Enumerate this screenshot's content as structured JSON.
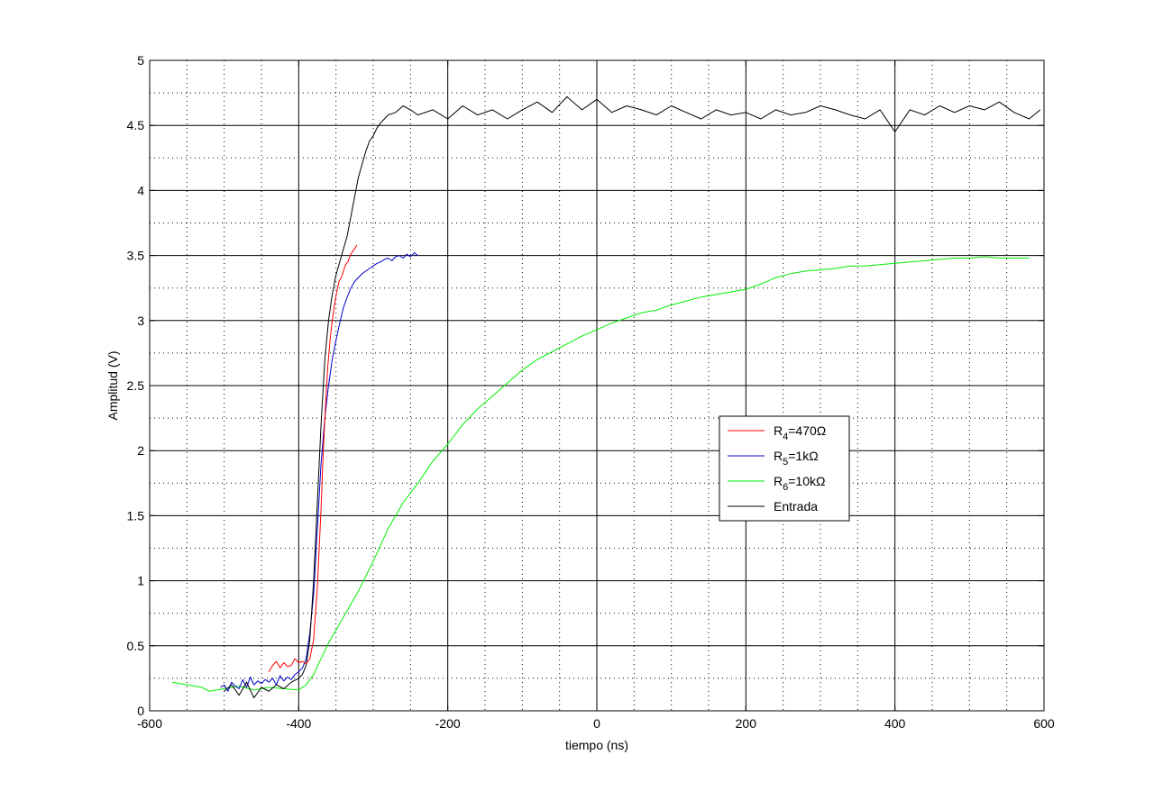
{
  "chart_data": {
    "type": "line",
    "xlabel": "tiempo (ns)",
    "ylabel": "Amplitud (V)",
    "xlim": [
      -600,
      600
    ],
    "ylim": [
      0,
      5
    ],
    "xticks": [
      -600,
      -400,
      -200,
      0,
      200,
      400,
      600
    ],
    "yticks": [
      0,
      0.5,
      1,
      1.5,
      2,
      2.5,
      3,
      3.5,
      4,
      4.5,
      5
    ],
    "grid": true,
    "minor_grid": "dotted",
    "legend_position": "center-right",
    "series": [
      {
        "name": "R4=470Ω",
        "legend_base": "R",
        "legend_sub": "4",
        "legend_rest": "=470Ω",
        "color": "#ff0000",
        "x": [
          -440,
          -435,
          -430,
          -425,
          -420,
          -415,
          -410,
          -405,
          -400,
          -395,
          -390,
          -385,
          -380,
          -375,
          -370,
          -367,
          -364,
          -361,
          -358,
          -355,
          -352,
          -349,
          -346,
          -343,
          -340,
          -337,
          -334,
          -331,
          -328,
          -325,
          -322
        ],
        "y": [
          0.3,
          0.35,
          0.38,
          0.33,
          0.37,
          0.34,
          0.35,
          0.4,
          0.37,
          0.38,
          0.36,
          0.4,
          0.55,
          0.95,
          1.55,
          2.0,
          2.35,
          2.65,
          2.85,
          3.0,
          3.12,
          3.22,
          3.3,
          3.33,
          3.38,
          3.43,
          3.45,
          3.5,
          3.53,
          3.55,
          3.58
        ]
      },
      {
        "name": "R5=1kΩ",
        "legend_base": "R",
        "legend_sub": "5",
        "legend_rest": "=1kΩ",
        "color": "#0000cc",
        "x": [
          -505,
          -500,
          -495,
          -490,
          -485,
          -480,
          -475,
          -470,
          -465,
          -460,
          -455,
          -450,
          -445,
          -440,
          -435,
          -430,
          -425,
          -420,
          -415,
          -410,
          -405,
          -400,
          -395,
          -390,
          -385,
          -380,
          -375,
          -370,
          -365,
          -360,
          -355,
          -350,
          -345,
          -340,
          -335,
          -330,
          -325,
          -320,
          -315,
          -310,
          -305,
          -300,
          -295,
          -290,
          -285,
          -280,
          -275,
          -270,
          -265,
          -260,
          -255,
          -250,
          -245,
          -240
        ],
        "y": [
          0.18,
          0.2,
          0.15,
          0.22,
          0.19,
          0.17,
          0.24,
          0.18,
          0.26,
          0.2,
          0.23,
          0.21,
          0.24,
          0.22,
          0.25,
          0.2,
          0.27,
          0.23,
          0.26,
          0.24,
          0.28,
          0.3,
          0.33,
          0.4,
          0.6,
          0.9,
          1.4,
          1.9,
          2.25,
          2.5,
          2.7,
          2.85,
          2.98,
          3.1,
          3.18,
          3.25,
          3.3,
          3.33,
          3.36,
          3.38,
          3.4,
          3.42,
          3.44,
          3.45,
          3.47,
          3.48,
          3.46,
          3.49,
          3.5,
          3.48,
          3.51,
          3.49,
          3.52,
          3.5
        ]
      },
      {
        "name": "R6=10kΩ",
        "legend_base": "R",
        "legend_sub": "6",
        "legend_rest": "=10kΩ",
        "color": "#00ee00",
        "x": [
          -570,
          -550,
          -530,
          -520,
          -500,
          -480,
          -460,
          -440,
          -420,
          -400,
          -390,
          -380,
          -370,
          -360,
          -350,
          -340,
          -330,
          -320,
          -300,
          -280,
          -260,
          -240,
          -220,
          -200,
          -180,
          -160,
          -140,
          -120,
          -100,
          -80,
          -60,
          -40,
          -20,
          0,
          20,
          40,
          60,
          80,
          100,
          120,
          140,
          160,
          180,
          200,
          220,
          240,
          260,
          280,
          300,
          320,
          340,
          360,
          380,
          400,
          420,
          440,
          460,
          480,
          500,
          520,
          540,
          560,
          580
        ],
        "y": [
          0.22,
          0.2,
          0.18,
          0.15,
          0.17,
          0.19,
          0.16,
          0.18,
          0.17,
          0.16,
          0.2,
          0.28,
          0.4,
          0.52,
          0.62,
          0.72,
          0.82,
          0.92,
          1.15,
          1.4,
          1.6,
          1.75,
          1.92,
          2.05,
          2.2,
          2.32,
          2.42,
          2.52,
          2.62,
          2.7,
          2.76,
          2.82,
          2.88,
          2.93,
          2.98,
          3.02,
          3.06,
          3.08,
          3.12,
          3.15,
          3.18,
          3.2,
          3.22,
          3.24,
          3.28,
          3.33,
          3.36,
          3.38,
          3.39,
          3.4,
          3.42,
          3.42,
          3.43,
          3.44,
          3.45,
          3.46,
          3.47,
          3.48,
          3.48,
          3.49,
          3.48,
          3.48,
          3.48
        ]
      },
      {
        "name": "Entrada",
        "legend_base": "Entrada",
        "legend_sub": "",
        "legend_rest": "",
        "color": "#000000",
        "x": [
          -500,
          -490,
          -480,
          -470,
          -460,
          -450,
          -440,
          -430,
          -420,
          -410,
          -400,
          -395,
          -390,
          -385,
          -380,
          -375,
          -370,
          -365,
          -360,
          -355,
          -350,
          -345,
          -340,
          -335,
          -330,
          -325,
          -320,
          -315,
          -310,
          -305,
          -300,
          -295,
          -290,
          -285,
          -280,
          -270,
          -260,
          -250,
          -240,
          -220,
          -200,
          -180,
          -160,
          -140,
          -120,
          -100,
          -80,
          -60,
          -40,
          -20,
          0,
          20,
          40,
          60,
          80,
          100,
          120,
          140,
          160,
          180,
          200,
          220,
          240,
          260,
          280,
          300,
          320,
          340,
          360,
          380,
          400,
          420,
          440,
          460,
          480,
          500,
          520,
          540,
          560,
          580,
          595
        ],
        "y": [
          0.15,
          0.2,
          0.12,
          0.22,
          0.1,
          0.18,
          0.15,
          0.2,
          0.17,
          0.22,
          0.25,
          0.28,
          0.35,
          0.55,
          1.0,
          1.6,
          2.2,
          2.7,
          3.0,
          3.2,
          3.35,
          3.45,
          3.55,
          3.65,
          3.8,
          3.95,
          4.1,
          4.2,
          4.3,
          4.38,
          4.42,
          4.48,
          4.52,
          4.55,
          4.58,
          4.6,
          4.65,
          4.62,
          4.58,
          4.62,
          4.55,
          4.65,
          4.58,
          4.62,
          4.55,
          4.62,
          4.68,
          4.6,
          4.72,
          4.62,
          4.7,
          4.6,
          4.65,
          4.62,
          4.58,
          4.65,
          4.6,
          4.55,
          4.62,
          4.58,
          4.6,
          4.55,
          4.62,
          4.58,
          4.6,
          4.65,
          4.62,
          4.58,
          4.55,
          4.62,
          4.45,
          4.62,
          4.58,
          4.65,
          4.6,
          4.65,
          4.62,
          4.68,
          4.6,
          4.55,
          4.62
        ]
      }
    ]
  }
}
